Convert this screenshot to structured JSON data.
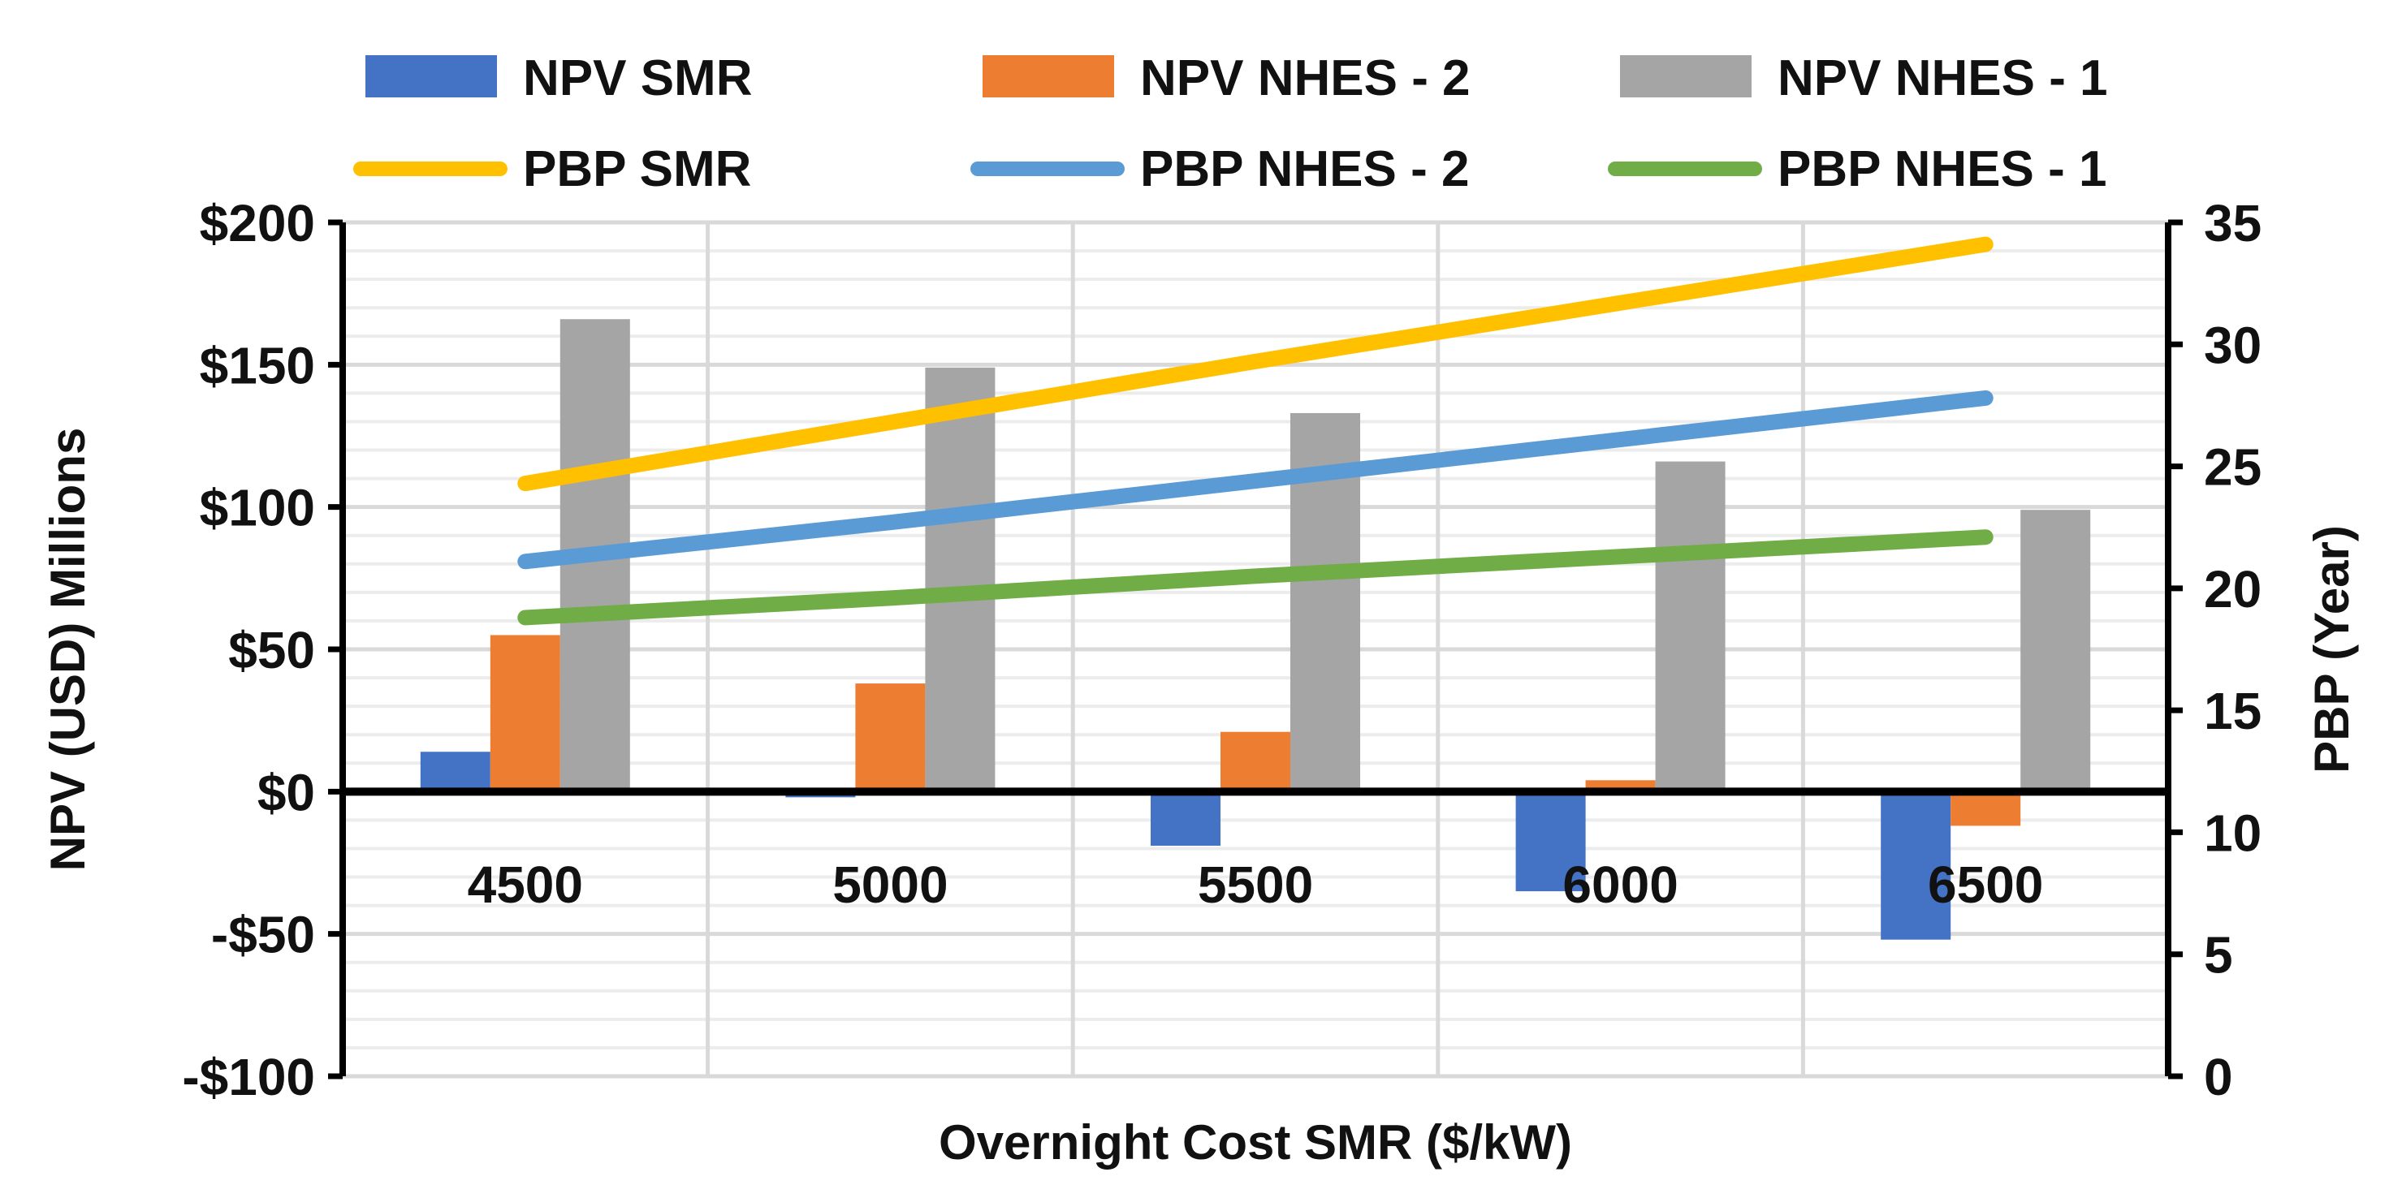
{
  "chart_data": {
    "type": "bar-line-combo",
    "xlabel": "Overnight Cost SMR ($/kW)",
    "ylabel_left": "NPV (USD)  Millions",
    "ylabel_right": "PBP (Year)",
    "categories": [
      "4500",
      "5000",
      "5500",
      "6000",
      "6500"
    ],
    "left_axis": {
      "ylim": [
        -100,
        200
      ],
      "ticks": [
        -100,
        -50,
        0,
        50,
        100,
        150,
        200
      ],
      "tick_labels": [
        "-$100",
        "-$50",
        "$0",
        "$50",
        "$100",
        "$150",
        "$200"
      ],
      "grid_step": 10
    },
    "right_axis": {
      "ylim": [
        0,
        35
      ],
      "ticks": [
        0,
        5,
        10,
        15,
        20,
        25,
        30,
        35
      ],
      "tick_labels": [
        "0",
        "5",
        "10",
        "15",
        "20",
        "25",
        "30",
        "35"
      ]
    },
    "legend": [
      {
        "name": "NPV SMR",
        "kind": "bar",
        "color": "#4472C4"
      },
      {
        "name": "NPV NHES - 2",
        "kind": "bar",
        "color": "#ED7D31"
      },
      {
        "name": "NPV NHES - 1",
        "kind": "bar",
        "color": "#A5A5A5"
      },
      {
        "name": "PBP SMR",
        "kind": "line",
        "color": "#FFC000"
      },
      {
        "name": "PBP NHES - 2",
        "kind": "line",
        "color": "#5B9BD5"
      },
      {
        "name": "PBP NHES - 1",
        "kind": "line",
        "color": "#70AD47"
      }
    ],
    "bar_series": [
      {
        "name": "NPV SMR",
        "color": "#4472C4",
        "values": [
          14,
          -2,
          -19,
          -35,
          -52
        ]
      },
      {
        "name": "NPV NHES - 2",
        "color": "#ED7D31",
        "values": [
          55,
          38,
          21,
          4,
          -12
        ]
      },
      {
        "name": "NPV NHES - 1",
        "color": "#A5A5A5",
        "values": [
          166,
          149,
          133,
          116,
          99
        ]
      }
    ],
    "line_series": [
      {
        "name": "PBP SMR",
        "color": "#FFC000",
        "values": [
          24.3,
          26.8,
          29.3,
          31.7,
          34.1
        ]
      },
      {
        "name": "PBP NHES - 2",
        "color": "#5B9BD5",
        "values": [
          21.1,
          22.7,
          24.4,
          26.1,
          27.8
        ]
      },
      {
        "name": "PBP NHES - 1",
        "color": "#70AD47",
        "values": [
          18.8,
          19.6,
          20.5,
          21.3,
          22.1
        ]
      }
    ]
  }
}
